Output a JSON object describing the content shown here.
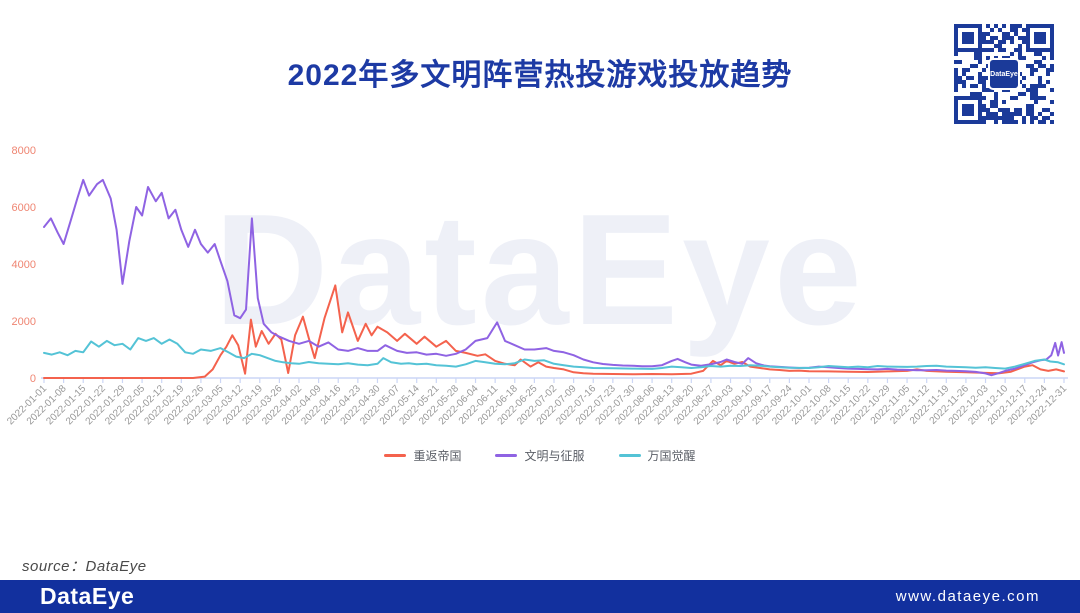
{
  "title": "2022年多文明阵营热投游戏投放趋势",
  "watermark": "DataEye",
  "source_note": "source：DataEye",
  "qr": {
    "label": "DataEye"
  },
  "footer": {
    "logo": "DataEye",
    "website": "www.dataeye.com"
  },
  "colors": {
    "title": "#1d3aa4",
    "y_labels": "#ef8572",
    "x_labels": "#999999",
    "axis_line": "#ccd6f5",
    "watermark": "#1c3aa0",
    "footer_bar": "#12309e",
    "qr_blue": "#1b3a99"
  },
  "chart_data": {
    "type": "line",
    "title": "2022年多文明阵营热投游戏投放趋势",
    "xlabel": "",
    "ylabel": "",
    "grid": false,
    "legend_position": "bottom",
    "y_axis": {
      "range": [
        0,
        8000
      ],
      "ticks": [
        0,
        2000,
        4000,
        6000,
        8000
      ]
    },
    "x_axis": {
      "range_weeks": [
        0,
        52
      ],
      "tick_labels": [
        "2022-01-01",
        "2022-01-08",
        "2022-01-15",
        "2022-01-22",
        "2022-01-29",
        "2022-02-05",
        "2022-02-12",
        "2022-02-19",
        "2022-02-26",
        "2022-03-05",
        "2022-03-12",
        "2022-03-19",
        "2022-03-26",
        "2022-04-02",
        "2022-04-09",
        "2022-04-16",
        "2022-04-23",
        "2022-04-30",
        "2022-05-07",
        "2022-05-14",
        "2022-05-21",
        "2022-05-28",
        "2022-06-04",
        "2022-06-11",
        "2022-06-18",
        "2022-06-25",
        "2022-07-02",
        "2022-07-09",
        "2022-07-16",
        "2022-07-23",
        "2022-07-30",
        "2022-08-06",
        "2022-08-13",
        "2022-08-20",
        "2022-08-27",
        "2022-09-03",
        "2022-09-10",
        "2022-09-17",
        "2022-09-24",
        "2022-10-01",
        "2022-10-08",
        "2022-10-15",
        "2022-10-22",
        "2022-10-29",
        "2022-11-05",
        "2022-11-12",
        "2022-11-19",
        "2022-11-26",
        "2022-12-03",
        "2022-12-10",
        "2022-12-17",
        "2022-12-24",
        "2022-12-31"
      ]
    },
    "series": [
      {
        "name": "重返帝国",
        "color": "#f4624d",
        "x": [
          0,
          2,
          4,
          6,
          7.6,
          8.2,
          8.6,
          9.0,
          9.3,
          9.6,
          9.9,
          10.25,
          10.55,
          10.8,
          11.1,
          11.45,
          11.8,
          12.1,
          12.45,
          12.8,
          13.2,
          13.5,
          13.8,
          14.3,
          14.85,
          15.2,
          15.5,
          16.0,
          16.4,
          16.7,
          17.0,
          17.5,
          18.0,
          18.4,
          19.0,
          19.4,
          20.0,
          20.5,
          21.0,
          21.5,
          22.1,
          22.5,
          23.0,
          23.5,
          24.0,
          24.3,
          24.8,
          25.2,
          25.6,
          26.0,
          26.5,
          27.0,
          27.5,
          28.0,
          29.0,
          30.0,
          31.0,
          32.0,
          33.0,
          33.6,
          34.1,
          34.5,
          34.8,
          35.2,
          35.6,
          36.0,
          36.5,
          37.0,
          37.5,
          38.0,
          38.5,
          39.0,
          40.0,
          41.0,
          42.0,
          43.0,
          44.0,
          44.5,
          45.0,
          46.0,
          47.0,
          48.0,
          48.7,
          49.3,
          50.0,
          50.4,
          50.8,
          51.2,
          51.6,
          52.0
        ],
        "values": [
          0,
          0,
          0,
          0,
          0,
          50,
          300,
          800,
          1100,
          1500,
          1150,
          150,
          2050,
          1100,
          1650,
          1200,
          1550,
          1350,
          175,
          1500,
          2150,
          1400,
          700,
          2100,
          3250,
          1600,
          2300,
          1300,
          1900,
          1500,
          1800,
          1600,
          1300,
          1550,
          1200,
          1450,
          1100,
          1300,
          950,
          880,
          780,
          830,
          600,
          500,
          450,
          650,
          400,
          550,
          400,
          350,
          300,
          200,
          170,
          150,
          140,
          130,
          140,
          130,
          150,
          250,
          600,
          450,
          600,
          500,
          560,
          400,
          350,
          300,
          280,
          250,
          260,
          240,
          230,
          220,
          210,
          230,
          250,
          300,
          250,
          220,
          200,
          180,
          170,
          220,
          400,
          450,
          300,
          250,
          300,
          230
        ]
      },
      {
        "name": "文明与征服",
        "color": "#8f63e3",
        "x": [
          0,
          0.35,
          0.7,
          1.0,
          1.35,
          1.7,
          2.0,
          2.3,
          2.7,
          3.0,
          3.4,
          3.7,
          4.0,
          4.35,
          4.7,
          5.0,
          5.3,
          5.7,
          6.0,
          6.35,
          6.7,
          7.0,
          7.35,
          7.7,
          8.0,
          8.35,
          8.7,
          9.0,
          9.35,
          9.7,
          10.0,
          10.3,
          10.6,
          10.9,
          11.2,
          11.6,
          12.0,
          12.5,
          13.0,
          13.5,
          14.0,
          14.5,
          15.0,
          15.5,
          16.0,
          16.5,
          17.0,
          17.4,
          18.0,
          18.5,
          19.0,
          19.5,
          20.0,
          20.5,
          21.0,
          21.5,
          22.0,
          22.6,
          23.1,
          23.5,
          24.0,
          24.5,
          25.0,
          25.6,
          26.0,
          26.5,
          27.0,
          27.5,
          28.0,
          28.5,
          29.0,
          29.5,
          30.0,
          30.5,
          31.0,
          31.5,
          32.0,
          32.3,
          32.7,
          33.0,
          33.5,
          34.0,
          34.5,
          34.8,
          35.2,
          35.6,
          35.9,
          36.3,
          36.7,
          37.0,
          37.5,
          38.0,
          38.5,
          39.0,
          39.5,
          40.0,
          40.5,
          41.0,
          41.5,
          42.0,
          42.5,
          43.0,
          43.5,
          44.0,
          44.5,
          45.0,
          45.5,
          46.0,
          46.5,
          47.0,
          47.5,
          48.0,
          48.3,
          48.7,
          49.0,
          49.5,
          50.0,
          50.4,
          50.8,
          51.1,
          51.35,
          51.55,
          51.7,
          51.88,
          52.0
        ],
        "values": [
          5300,
          5600,
          5100,
          4700,
          5500,
          6300,
          6950,
          6400,
          6800,
          6950,
          6300,
          5200,
          3300,
          4800,
          6000,
          5700,
          6700,
          6200,
          6500,
          5600,
          5900,
          5200,
          4600,
          5200,
          4700,
          4400,
          4700,
          4100,
          3400,
          2200,
          2100,
          2400,
          5600,
          2800,
          1900,
          1600,
          1450,
          1300,
          1200,
          1300,
          1100,
          1250,
          1000,
          950,
          1050,
          950,
          950,
          1150,
          950,
          880,
          900,
          820,
          850,
          780,
          850,
          1000,
          1300,
          1400,
          1950,
          1300,
          1150,
          1000,
          1000,
          1050,
          950,
          900,
          800,
          650,
          550,
          490,
          460,
          440,
          430,
          415,
          410,
          450,
          600,
          670,
          550,
          470,
          430,
          480,
          560,
          650,
          560,
          500,
          700,
          520,
          440,
          410,
          390,
          370,
          350,
          360,
          400,
          380,
          350,
          330,
          320,
          310,
          300,
          320,
          295,
          285,
          275,
          270,
          280,
          260,
          250,
          240,
          215,
          160,
          100,
          180,
          250,
          330,
          450,
          550,
          620,
          650,
          800,
          1230,
          790,
          1260,
          880
        ]
      },
      {
        "name": "万国觉醒",
        "color": "#54c3d6",
        "x": [
          0,
          0.4,
          0.8,
          1.2,
          1.6,
          2.0,
          2.4,
          2.8,
          3.2,
          3.6,
          4.0,
          4.4,
          4.8,
          5.2,
          5.6,
          6.0,
          6.4,
          6.8,
          7.2,
          7.6,
          8.0,
          8.5,
          9.0,
          9.4,
          9.8,
          10.2,
          10.6,
          11.0,
          11.4,
          11.8,
          12.2,
          12.6,
          13.0,
          13.5,
          14.0,
          14.5,
          15.0,
          15.5,
          16.0,
          16.5,
          17.0,
          17.3,
          17.7,
          18.2,
          18.6,
          19.0,
          19.5,
          20.0,
          20.5,
          21.0,
          21.5,
          22.0,
          22.5,
          23.0,
          23.5,
          24.0,
          24.5,
          25.0,
          25.5,
          26.0,
          26.5,
          27.0,
          27.5,
          28.0,
          29.0,
          30.0,
          31.0,
          31.5,
          32.0,
          32.5,
          33.0,
          33.5,
          34.0,
          34.5,
          35.0,
          35.5,
          36.0,
          36.5,
          37.0,
          37.5,
          38.0,
          39.0,
          39.5,
          40.0,
          41.0,
          41.5,
          42.0,
          42.5,
          43.0,
          44.0,
          44.5,
          45.0,
          45.5,
          46.0,
          47.0,
          47.5,
          48.0,
          48.5,
          49.0,
          49.5,
          50.0,
          50.5,
          51.0,
          51.3,
          51.7,
          52.0
        ],
        "values": [
          880,
          820,
          900,
          800,
          950,
          900,
          1280,
          1100,
          1300,
          1150,
          1200,
          1000,
          1400,
          1300,
          1400,
          1200,
          1350,
          1200,
          900,
          850,
          1000,
          950,
          1050,
          900,
          750,
          700,
          850,
          800,
          700,
          600,
          550,
          520,
          500,
          560,
          520,
          500,
          480,
          520,
          470,
          450,
          500,
          700,
          550,
          500,
          520,
          480,
          500,
          450,
          430,
          400,
          480,
          600,
          550,
          500,
          480,
          520,
          650,
          600,
          620,
          500,
          450,
          400,
          380,
          350,
          340,
          330,
          320,
          350,
          400,
          380,
          350,
          380,
          420,
          400,
          430,
          420,
          450,
          430,
          400,
          380,
          360,
          350,
          380,
          420,
          380,
          400,
          380,
          420,
          400,
          390,
          400,
          420,
          430,
          400,
          380,
          360,
          380,
          350,
          330,
          400,
          500,
          600,
          650,
          580,
          550,
          480
        ]
      }
    ]
  }
}
